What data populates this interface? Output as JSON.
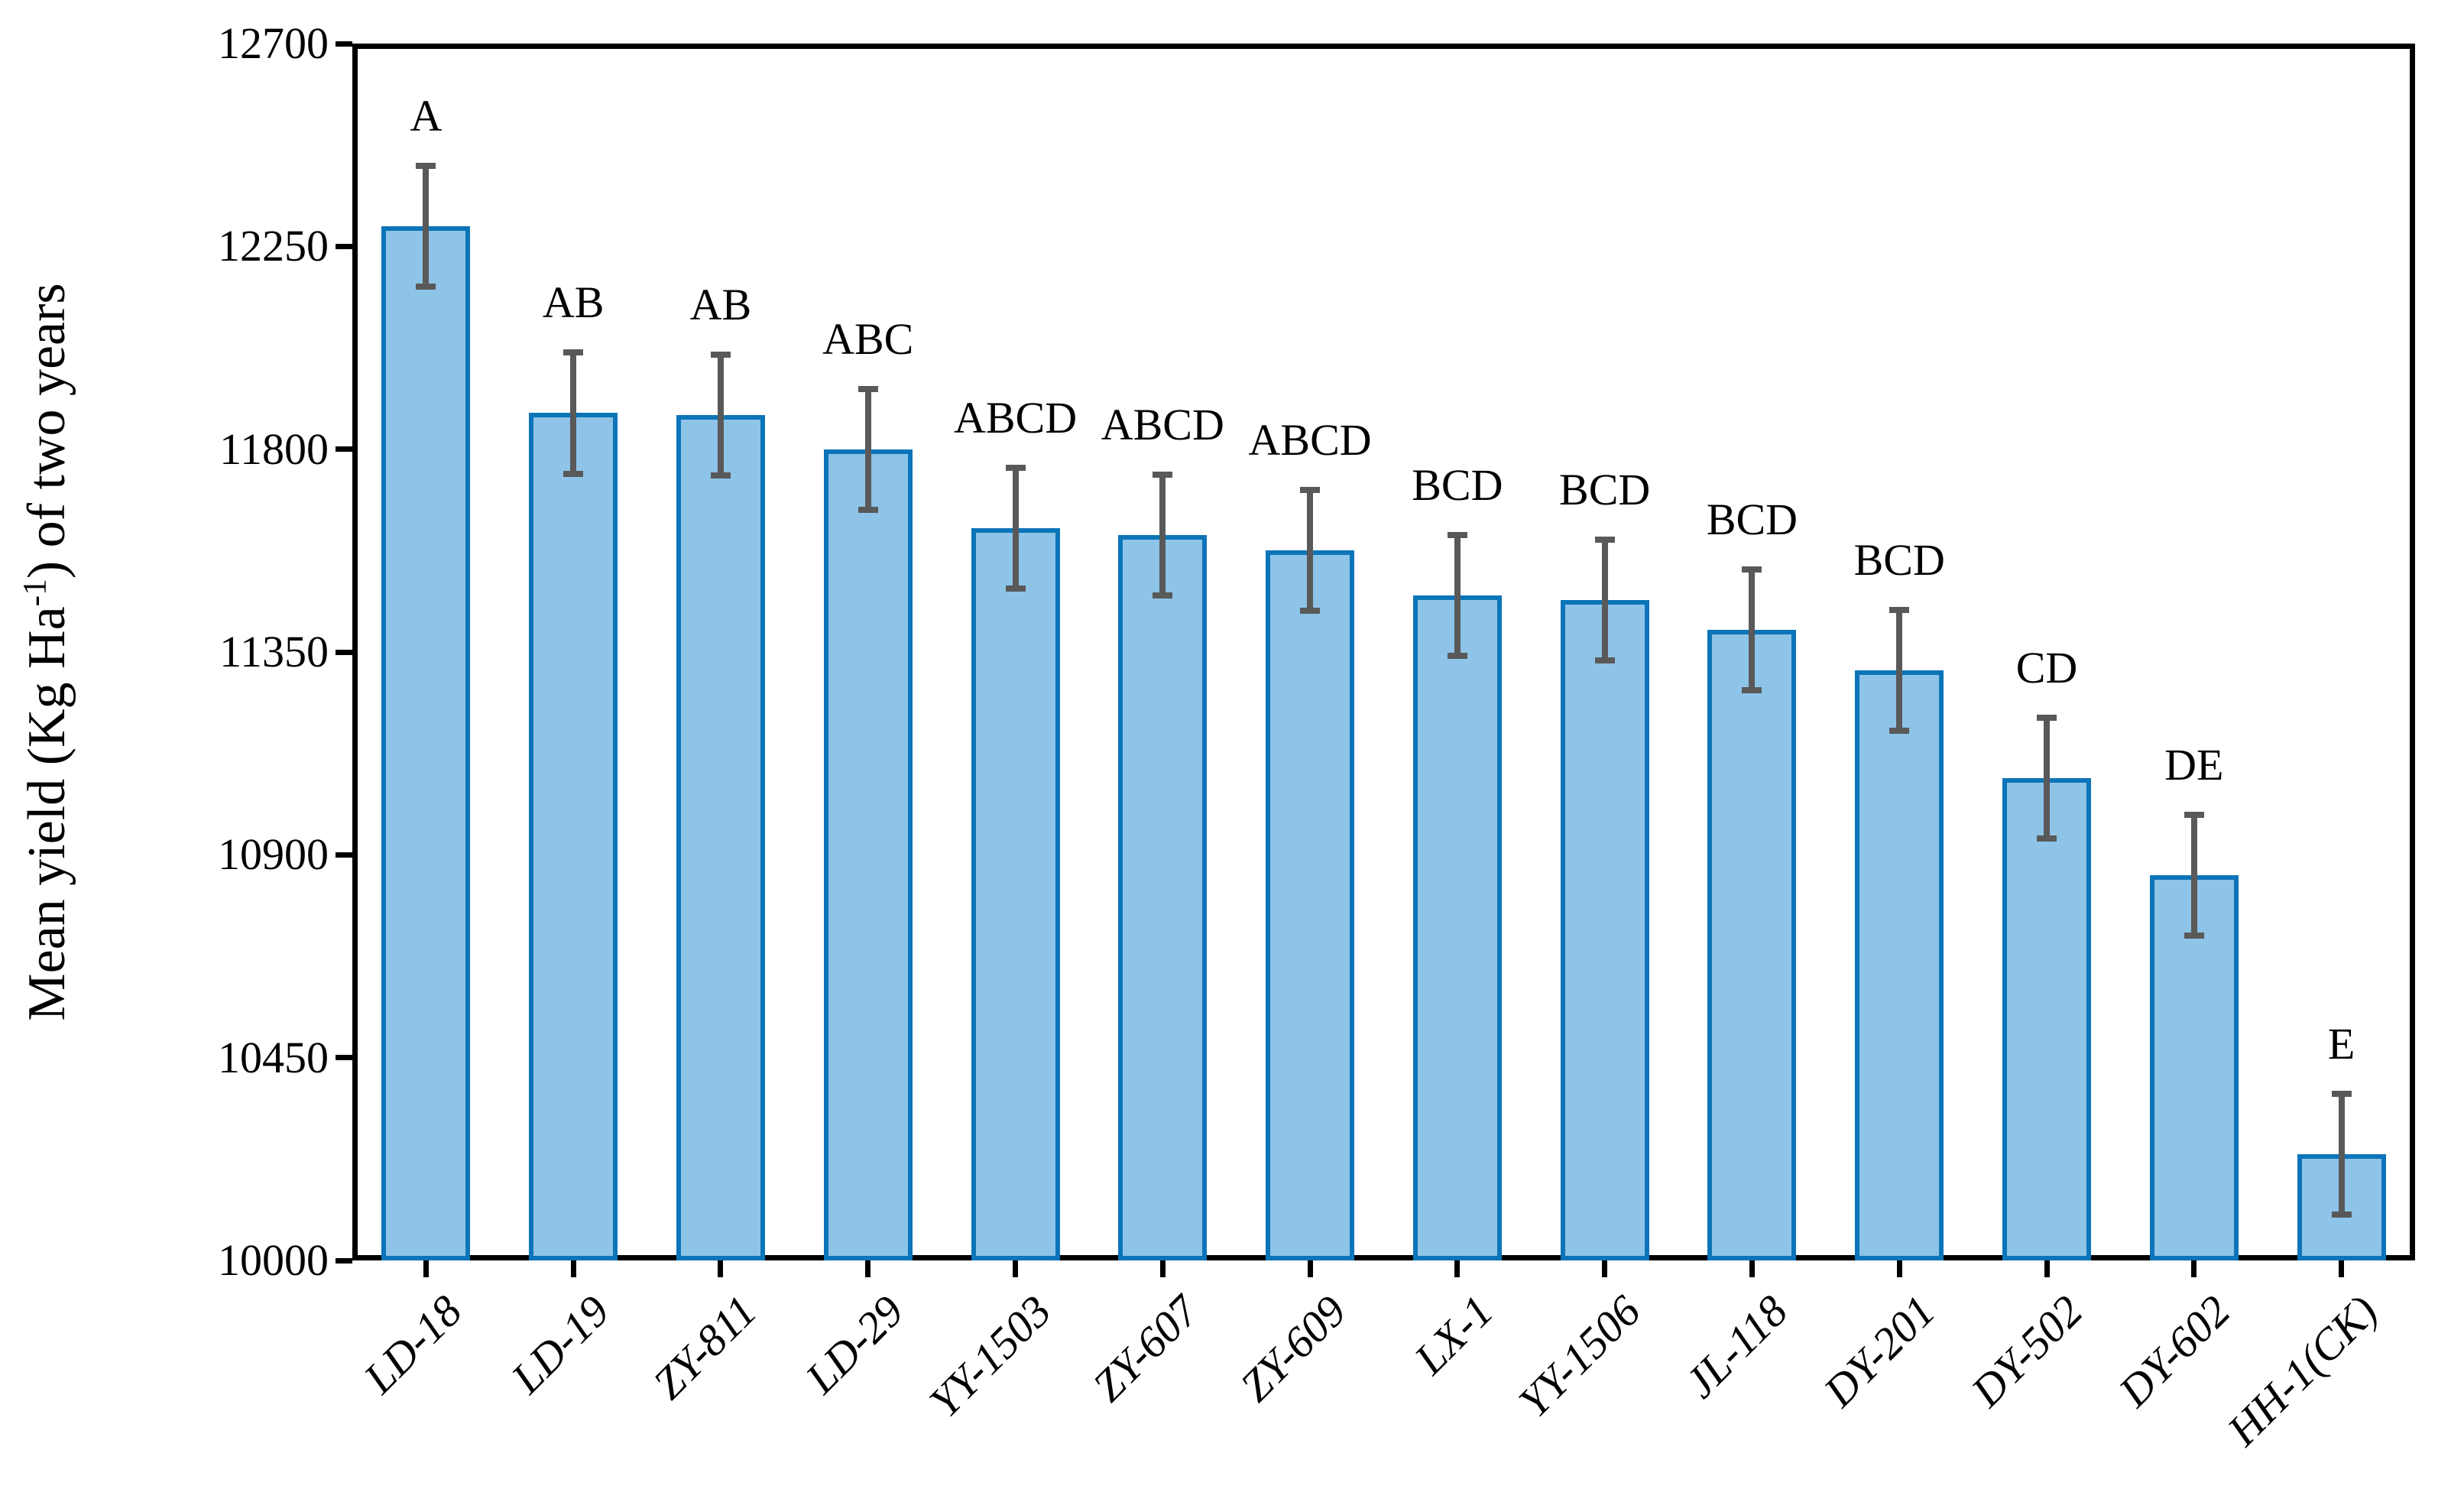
{
  "chart_data": {
    "type": "bar",
    "title": "",
    "ylabel_prefix": "Mean yield (Kg Ha",
    "ylabel_sup": "-1",
    "ylabel_suffix": ") of two years",
    "xlabel": "",
    "categories": [
      "LD-18",
      "LD-19",
      "ZY-811",
      "LD-29",
      "YY-1503",
      "ZY-607",
      "ZY-609",
      "LX-1",
      "YY-1506",
      "JL-118",
      "DY-201",
      "DY-502",
      "DY-602",
      "HH-1(CK)"
    ],
    "values": [
      12295,
      11880,
      11875,
      11800,
      11625,
      11610,
      11575,
      11475,
      11465,
      11400,
      11310,
      11070,
      10855,
      10235
    ],
    "error": 134,
    "sig_letters": [
      "A",
      "AB",
      "AB",
      "ABC",
      "ABCD",
      "ABCD",
      "ABCD",
      "BCD",
      "BCD",
      "BCD",
      "BCD",
      "CD",
      "DE",
      "E"
    ],
    "yticks": [
      10000,
      10450,
      10900,
      11350,
      11800,
      12250,
      12700
    ],
    "ylim": [
      10000,
      12700
    ],
    "grid": false,
    "legend": null,
    "colors": {
      "bar_fill": "#8EC4E8",
      "bar_border": "#0C74B8",
      "error_bar": "#595959",
      "axis": "#000000",
      "text": "#000000"
    }
  }
}
